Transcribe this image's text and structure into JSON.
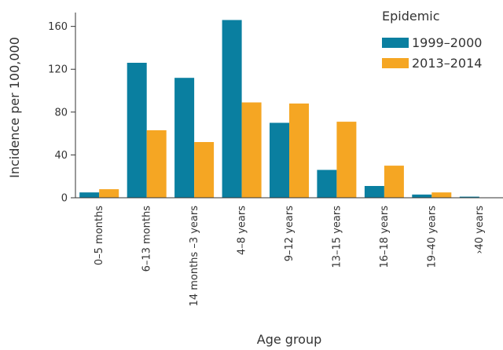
{
  "chart_data": {
    "type": "bar",
    "categories": [
      "0–5 months",
      "6–13 months",
      "14 months –3 years",
      "4–8 years",
      "9–12 years",
      "13–15 years",
      "16–18 years",
      "19–40 years",
      "›40 years"
    ],
    "series": [
      {
        "name": "1999–2000",
        "values": [
          5,
          126,
          112,
          166,
          70,
          26,
          11,
          3,
          1
        ],
        "color": "#0a7fa0"
      },
      {
        "name": "2013–2014",
        "values": [
          8,
          63,
          52,
          89,
          88,
          71,
          30,
          5,
          0
        ],
        "color": "#f5a623"
      }
    ],
    "xlabel": "Age group",
    "ylabel": "Incidence per 100,000",
    "ylim": [
      0,
      170
    ],
    "yticks": [
      0,
      40,
      80,
      120,
      160
    ],
    "legend_title": "Epidemic",
    "legend_position": "top-right",
    "grid": false
  }
}
